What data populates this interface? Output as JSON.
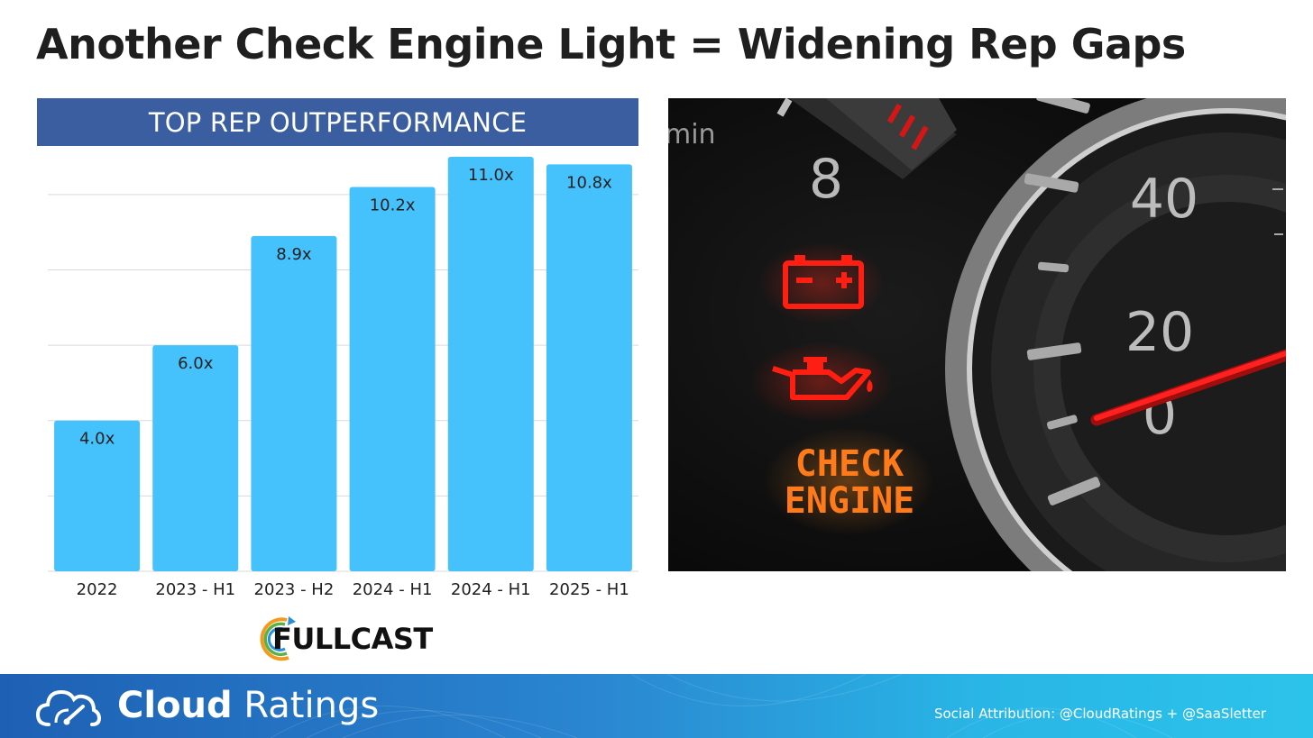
{
  "slide": {
    "title": "Another Check Engine Light = Widening Rep Gaps"
  },
  "chart_data": {
    "type": "bar",
    "title": "TOP REP OUTPERFORMANCE",
    "categories": [
      "2022",
      "2023 - H1",
      "2023 - H2",
      "2024 - H1",
      "2024 - H1",
      "2025 - H1"
    ],
    "values": [
      4.0,
      6.0,
      8.9,
      10.2,
      11.0,
      10.8
    ],
    "data_labels": [
      "4.0x",
      "6.0x",
      "8.9x",
      "10.2x",
      "11.0x",
      "10.8x"
    ],
    "xlabel": "",
    "ylabel": "",
    "ylim": [
      0,
      11.0
    ],
    "grid": true,
    "legend": "none",
    "bar_color": "#45c1fb"
  },
  "logo": {
    "text": "FULLCAST"
  },
  "dashboard": {
    "gauge_numbers": [
      "8",
      "40",
      "20",
      "0"
    ],
    "min_label": "min",
    "warning_text_line1": "CHECK",
    "warning_text_line2": "ENGINE",
    "icons": [
      "battery-warning-icon",
      "oil-pressure-icon"
    ],
    "warning_color": "#e51414",
    "check_engine_color": "#ff7a18"
  },
  "footer": {
    "brand_bold": "Cloud",
    "brand_light": "Ratings",
    "attribution": "Social Attribution: @CloudRatings + @SaaSletter"
  }
}
